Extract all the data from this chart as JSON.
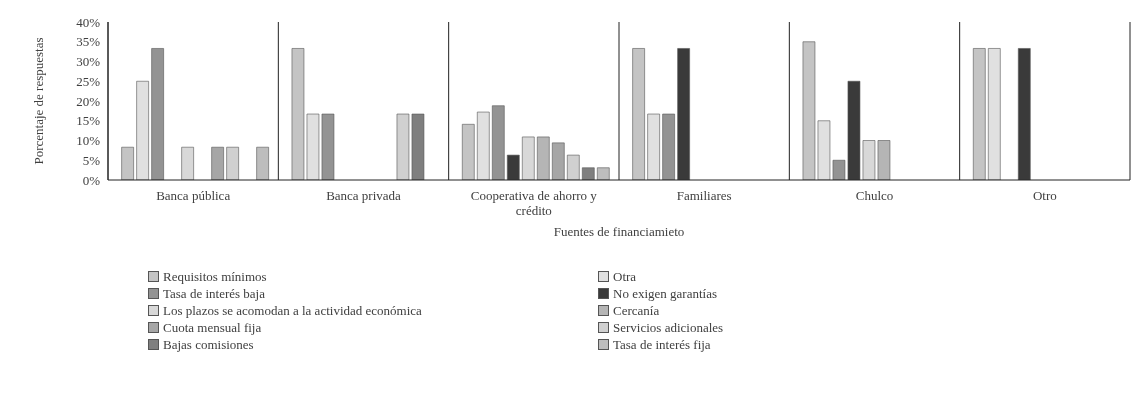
{
  "chart_data": {
    "type": "bar",
    "xlabel": "Fuentes de financiamieto",
    "ylabel": "Porcentaje de respuestas",
    "categories": [
      "Banca pública",
      "Banca privada",
      "Cooperativa de ahorro y crédito",
      "Familiares",
      "Chulco",
      "Otro"
    ],
    "series": [
      {
        "name": "Requisitos mínimos",
        "color": "#c4c4c4",
        "values": [
          8.3,
          33.3,
          14.1,
          33.3,
          35,
          33.3
        ]
      },
      {
        "name": "Otra",
        "color": "#e0e0e0",
        "values": [
          25,
          16.7,
          17.2,
          16.7,
          15,
          33.3
        ]
      },
      {
        "name": "Tasa de interés baja",
        "color": "#939393",
        "values": [
          33.3,
          16.7,
          18.8,
          16.7,
          5,
          null
        ]
      },
      {
        "name": "No exigen garantías",
        "color": "#3a3a3a",
        "values": [
          null,
          null,
          6.3,
          33.3,
          25,
          33.3
        ]
      },
      {
        "name": "Los plazos se acomodan a la actividad económica",
        "color": "#d8d8d8",
        "values": [
          8.3,
          null,
          10.9,
          null,
          10,
          null
        ]
      },
      {
        "name": "Cercanía",
        "color": "#b5b5b5",
        "values": [
          null,
          null,
          10.9,
          null,
          10,
          null
        ]
      },
      {
        "name": "Cuota mensual fija",
        "color": "#a6a6a6",
        "values": [
          8.3,
          null,
          9.4,
          null,
          null,
          null
        ]
      },
      {
        "name": "Servicios adicionales",
        "color": "#d0d0d0",
        "values": [
          8.3,
          16.7,
          6.3,
          null,
          null,
          null
        ]
      },
      {
        "name": "Bajas comisiones",
        "color": "#7f7f7f",
        "values": [
          null,
          16.7,
          3.1,
          null,
          null,
          null
        ]
      },
      {
        "name": "Tasa de interés fija",
        "color": "#bdbdbd",
        "values": [
          8.3,
          null,
          3.1,
          null,
          null,
          null
        ]
      }
    ],
    "ylim": [
      0,
      40
    ],
    "yticks": [
      {
        "value": 0,
        "label": "0%"
      },
      {
        "value": 5,
        "label": "5%"
      },
      {
        "value": 10,
        "label": "10%"
      },
      {
        "value": 15,
        "label": "15%"
      },
      {
        "value": 20,
        "label": "20%"
      },
      {
        "value": 25,
        "label": "25%"
      },
      {
        "value": 30,
        "label": "30%"
      },
      {
        "value": 35,
        "label": "35%"
      },
      {
        "value": 40,
        "label": "40%"
      }
    ],
    "grid": "x",
    "legend": "bottom"
  }
}
